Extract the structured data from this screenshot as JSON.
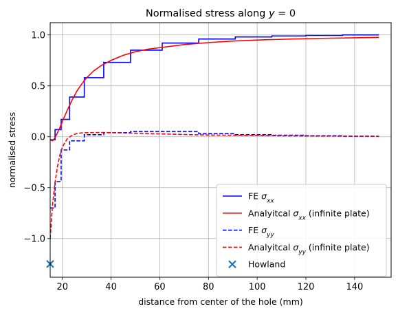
{
  "chart_data": {
    "type": "line",
    "title_parts": [
      {
        "text": "Normalised stress along ",
        "italic": false
      },
      {
        "text": "y",
        "italic": true
      },
      {
        "text": " = 0",
        "italic": false
      }
    ],
    "xlabel": "distance from center of the hole (mm)",
    "ylabel": "normalised stress",
    "xlim": [
      15,
      155
    ],
    "ylim": [
      -1.38,
      1.12
    ],
    "xticks": [
      20,
      40,
      60,
      80,
      100,
      120,
      140
    ],
    "yticks": [
      -1.0,
      -0.5,
      0.0,
      0.5,
      1.0
    ],
    "xtick_labels": [
      "20",
      "40",
      "60",
      "80",
      "100",
      "120",
      "140"
    ],
    "ytick_labels": [
      "−1.0",
      "−0.5",
      "0.0",
      "0.5",
      "1.0"
    ],
    "grid": true,
    "legend_position": "lower-right",
    "series": [
      {
        "key": "fe_sxx",
        "legend": [
          {
            "text": "FE ",
            "italic": false
          },
          {
            "text": "σ",
            "italic": true
          },
          {
            "text": "xx",
            "italic": true,
            "sub": true
          }
        ],
        "color": "#0000ff",
        "dash": "solid",
        "style": "step",
        "x": [
          15,
          15.8,
          17,
          19.5,
          23,
          29,
          37,
          48,
          61,
          76,
          91,
          106,
          120,
          135,
          150
        ],
        "y": [
          -0.03,
          -0.03,
          0.07,
          0.17,
          0.39,
          0.58,
          0.73,
          0.85,
          0.92,
          0.96,
          0.98,
          0.99,
          0.995,
          1.0,
          1.0
        ]
      },
      {
        "key": "an_sxx",
        "legend": [
          {
            "text": "Analyitcal ",
            "italic": false
          },
          {
            "text": "σ",
            "italic": true
          },
          {
            "text": "xx",
            "italic": true,
            "sub": true
          },
          {
            "text": " (infinite plate)",
            "italic": false
          }
        ],
        "color": "#ff0000",
        "dash": "solid",
        "style": "line",
        "x": [
          15,
          16,
          17,
          18,
          19,
          20,
          22,
          24,
          26,
          28,
          30,
          33,
          36,
          40,
          45,
          50,
          55,
          60,
          70,
          80,
          90,
          100,
          110,
          120,
          130,
          140,
          150
        ],
        "y": [
          -0.03,
          -0.04,
          -0.01,
          0.04,
          0.09,
          0.15,
          0.26,
          0.36,
          0.45,
          0.52,
          0.58,
          0.65,
          0.7,
          0.75,
          0.8,
          0.835,
          0.86,
          0.875,
          0.905,
          0.925,
          0.94,
          0.95,
          0.957,
          0.963,
          0.968,
          0.972,
          0.976
        ]
      },
      {
        "key": "fe_syy",
        "legend": [
          {
            "text": "FE ",
            "italic": false
          },
          {
            "text": "σ",
            "italic": true
          },
          {
            "text": "yy",
            "italic": true,
            "sub": true
          }
        ],
        "color": "#0000ff",
        "dash": "dashed",
        "style": "step",
        "x": [
          15,
          15.8,
          17,
          19.5,
          23,
          29,
          37,
          48,
          61,
          76,
          91,
          106,
          120,
          135,
          150
        ],
        "y": [
          -0.7,
          -0.7,
          -0.44,
          -0.13,
          -0.04,
          0.02,
          0.04,
          0.05,
          0.05,
          0.03,
          0.02,
          0.015,
          0.01,
          0.005,
          0.005
        ]
      },
      {
        "key": "an_syy",
        "legend": [
          {
            "text": "Analyitcal ",
            "italic": false
          },
          {
            "text": "σ",
            "italic": true
          },
          {
            "text": "yy",
            "italic": true,
            "sub": true
          },
          {
            "text": " (infinite plate)",
            "italic": false
          }
        ],
        "color": "#ff0000",
        "dash": "dashed",
        "style": "line",
        "x": [
          15,
          15.5,
          16,
          17,
          18,
          19,
          20,
          22,
          24,
          26,
          28,
          30,
          35,
          40,
          45,
          50,
          60,
          70,
          80,
          100,
          120,
          150
        ],
        "y": [
          -1.0,
          -0.82,
          -0.66,
          -0.45,
          -0.29,
          -0.18,
          -0.1,
          -0.02,
          0.015,
          0.032,
          0.038,
          0.04,
          0.042,
          0.04,
          0.037,
          0.034,
          0.028,
          0.022,
          0.017,
          0.012,
          0.008,
          0.005
        ]
      }
    ],
    "markers": [
      {
        "key": "howland",
        "legend": [
          {
            "text": "Howland",
            "italic": false
          }
        ],
        "color": "#1f77b4",
        "shape": "x",
        "x": [
          15
        ],
        "y": [
          -1.25
        ]
      }
    ]
  }
}
